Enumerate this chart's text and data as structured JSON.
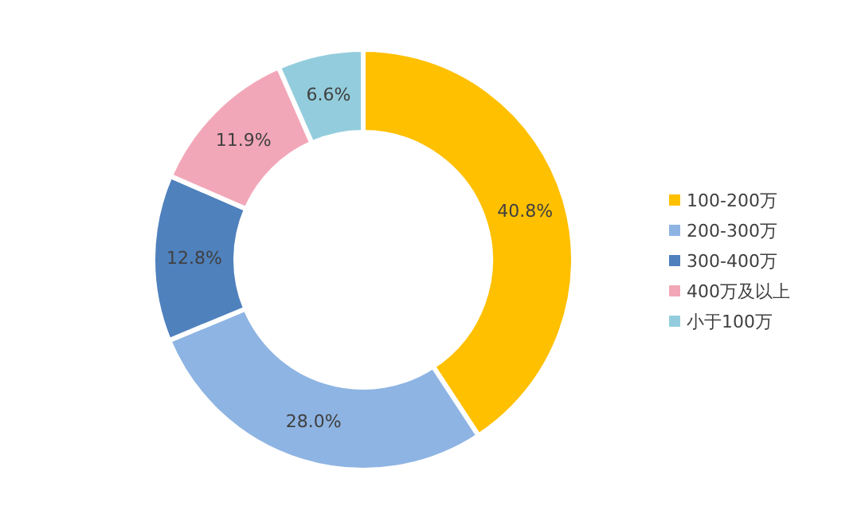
{
  "chart_data": {
    "type": "donut",
    "categories": [
      "100-200万",
      "200-300万",
      "300-400万",
      "400万及以上",
      "小于100万"
    ],
    "values": [
      40.8,
      28.0,
      12.8,
      11.9,
      6.6
    ],
    "colors": [
      "#ffc000",
      "#8eb4e3",
      "#4f81bd",
      "#f2a7b8",
      "#93cddd"
    ],
    "value_labels": [
      "40.8%",
      "28.0%",
      "12.8%",
      "11.9%",
      "6.6%"
    ],
    "legend": "right"
  }
}
